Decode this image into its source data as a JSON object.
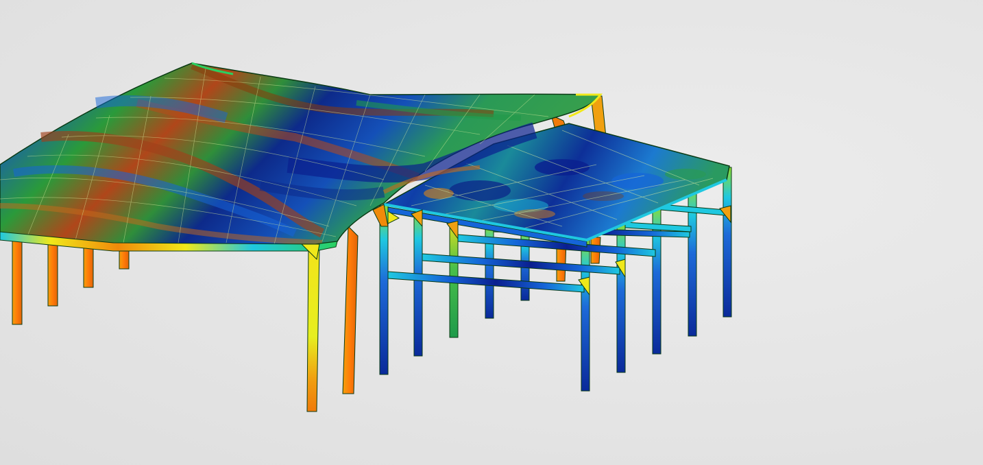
{
  "viewport": {
    "background": "#e5e5e5"
  },
  "scene": {
    "subject": "steel-frame-structure-fea-contour",
    "colormap": [
      "#0a1f8f",
      "#1565d8",
      "#1fc8e0",
      "#1f9a4a",
      "#8fcf1f",
      "#f0e81a",
      "#f08a0a",
      "#8a3a0a"
    ],
    "outline_color": "#0a3a14"
  }
}
